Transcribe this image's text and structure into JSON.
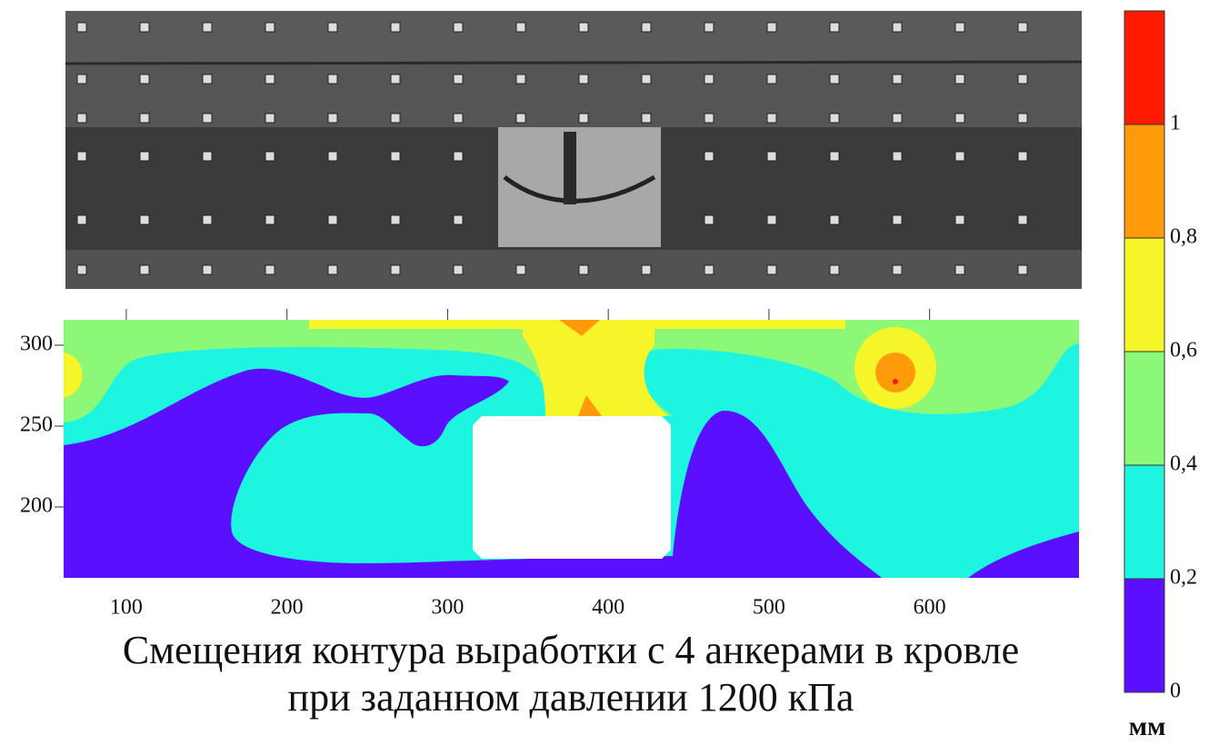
{
  "chart_data": {
    "type": "contour",
    "title": [
      "Смещения контура выработки с 4 анкерами в кровле",
      "при заданном давлении 1200 кПа"
    ],
    "xlim": [
      61,
      693
    ],
    "xticks": [
      100,
      200,
      300,
      400,
      500,
      600
    ],
    "ylim": [
      156.2,
      315.7
    ],
    "yticks": [
      200,
      250,
      300
    ],
    "colorbar": {
      "label": "мм",
      "zlim": [
        0,
        1.2
      ],
      "zticks": [
        0,
        {
          "value": 0.2,
          "label": "0,2"
        },
        {
          "value": 0.4,
          "label": "0,4"
        },
        {
          "value": 0.6,
          "label": "0,6"
        },
        {
          "value": 0.8,
          "label": "0,8"
        },
        1
      ],
      "colors": [
        "#5a10ff",
        "#1ef5e0",
        "#8cf878",
        "#f5f52a",
        "#ff9a0a",
        "#ff1a00"
      ]
    }
  }
}
